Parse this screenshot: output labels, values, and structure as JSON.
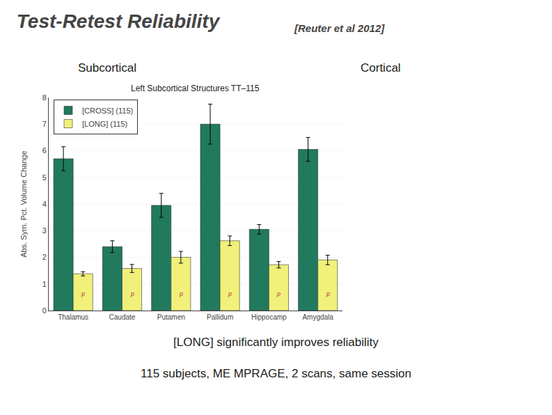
{
  "chart_data": {
    "type": "bar",
    "title": "Test-Retest Reliability",
    "subtitle": "[Reuter et al 2012]",
    "categories": [
      "Thalamus",
      "Caudate",
      "Putamen",
      "Pallidum",
      "Hippocamp",
      "Amygdala"
    ],
    "series": [
      {
        "name": "[CROSS] (115)",
        "color": "#217a5e",
        "values": [
          5.7,
          2.4,
          3.95,
          7.0,
          3.05,
          6.05
        ],
        "errors": [
          0.45,
          0.22,
          0.45,
          0.75,
          0.18,
          0.45
        ]
      },
      {
        "name": "[LONG] (115)",
        "color": "#f0f07a",
        "values": [
          1.38,
          1.58,
          2.0,
          2.62,
          1.72,
          1.9
        ],
        "errors": [
          0.08,
          0.15,
          0.22,
          0.18,
          0.12,
          0.18
        ]
      }
    ],
    "ylabel": "Abs. Sym. Pct. Volume Change",
    "ylim": [
      0,
      8
    ],
    "yticks": [
      0,
      1,
      2,
      3,
      4,
      5,
      6,
      7,
      8
    ],
    "grid": true,
    "legend": "upper left",
    "annotations": [
      {
        "text": "Left Subcortical Structures TT–115"
      },
      {
        "text": "Subcortical"
      },
      {
        "text": "Cortical"
      },
      {
        "text": "[LONG] significantly improves reliability"
      },
      {
        "text": "115 subjects, ME MPRAGE, 2 scans, same session"
      },
      {
        "text": "p",
        "category": "Thalamus",
        "series": "[LONG] (115)",
        "y": 0.45,
        "color": "#bb3333"
      },
      {
        "text": "p",
        "category": "Caudate",
        "series": "[LONG] (115)",
        "y": 0.45,
        "color": "#bb3333"
      },
      {
        "text": "p",
        "category": "Putamen",
        "series": "[LONG] (115)",
        "y": 0.45,
        "color": "#bb3333"
      },
      {
        "text": "p",
        "category": "Pallidum",
        "series": "[LONG] (115)",
        "y": 0.45,
        "color": "#bb3333"
      },
      {
        "text": "p",
        "category": "Hippocamp",
        "series": "[LONG] (115)",
        "y": 0.45,
        "color": "#bb3333"
      },
      {
        "text": "p",
        "category": "Amygdala",
        "series": "[LONG] (115)",
        "y": 0.45,
        "color": "#bb3333"
      }
    ]
  }
}
